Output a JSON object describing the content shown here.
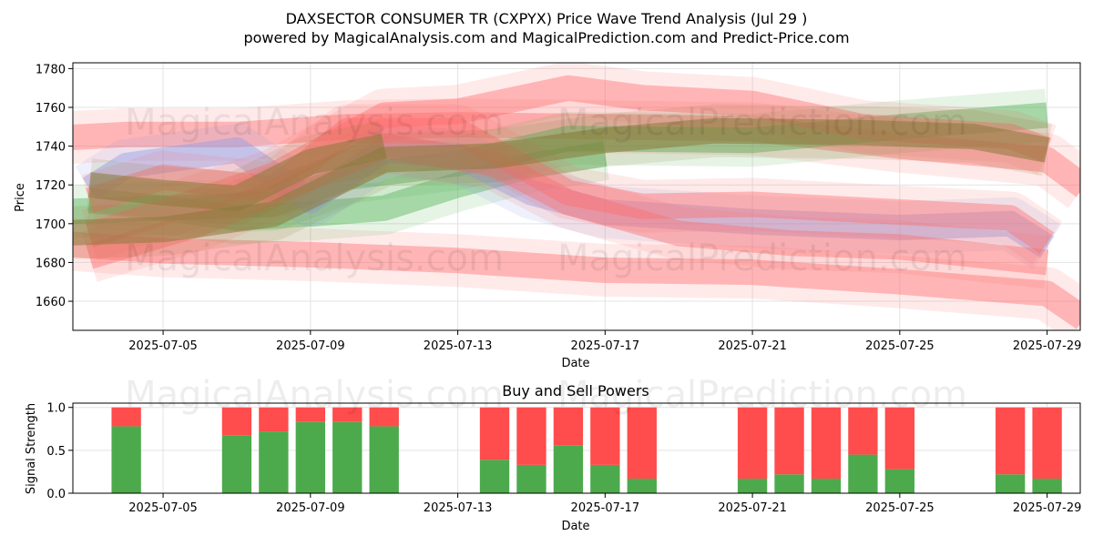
{
  "header": {
    "title": "DAXSECTOR CONSUMER TR (CXPYX) Price Wave Trend Analysis (Jul 29 )",
    "subtitle": "powered by MagicalAnalysis.com and MagicalPrediction.com and Predict-Price.com"
  },
  "watermarks": [
    "MagicalAnalysis.com",
    "MagicalPrediction.com"
  ],
  "colors": {
    "red_band": "#ff6b6b",
    "green_band": "#4caf50",
    "blue_band": "#8a9ae8",
    "olive_band": "#8b7a3a",
    "buy": "#4caa4c",
    "sell": "#ff4c4c"
  },
  "chart_data": [
    {
      "type": "area",
      "xlabel": "Date",
      "ylabel": "Price",
      "ylim": [
        1645,
        1783
      ],
      "xlim": [
        "2025-07-02",
        "2025-07-30"
      ],
      "grid": true,
      "x_ticks": [
        "2025-07-05",
        "2025-07-09",
        "2025-07-13",
        "2025-07-17",
        "2025-07-21",
        "2025-07-25",
        "2025-07-29"
      ],
      "y_ticks": [
        1660,
        1680,
        1700,
        1720,
        1740,
        1760,
        1780
      ],
      "series": [
        {
          "color": "red",
          "x": [
            "2025-07-02",
            "2025-07-04",
            "2025-07-07",
            "2025-07-10",
            "2025-07-13",
            "2025-07-17",
            "2025-07-21",
            "2025-07-25",
            "2025-07-29",
            "2025-07-30"
          ],
          "values": [
            1744,
            1746,
            1746,
            1750,
            1751,
            1750,
            1749,
            1740,
            1733,
            1719
          ]
        },
        {
          "color": "red",
          "x": [
            "2025-07-02",
            "2025-07-05",
            "2025-07-09",
            "2025-07-13",
            "2025-07-17",
            "2025-07-21",
            "2025-07-25",
            "2025-07-29",
            "2025-07-30"
          ],
          "values": [
            1690,
            1686,
            1684,
            1681,
            1676,
            1675,
            1670,
            1664,
            1651
          ]
        },
        {
          "color": "green",
          "x": [
            "2025-07-02",
            "2025-07-05",
            "2025-07-08",
            "2025-07-10",
            "2025-07-13",
            "2025-07-16",
            "2025-07-21",
            "2025-07-25",
            "2025-07-29"
          ],
          "values": [
            1706,
            1708,
            1710,
            1724,
            1731,
            1744,
            1743,
            1750,
            1756
          ]
        },
        {
          "color": "green",
          "x": [
            "2025-07-03",
            "2025-07-05",
            "2025-07-07",
            "2025-07-09",
            "2025-07-11",
            "2025-07-13",
            "2025-07-15",
            "2025-07-17"
          ],
          "values": [
            1712,
            1708,
            1703,
            1705,
            1708,
            1720,
            1730,
            1736
          ]
        },
        {
          "color": "blue",
          "x": [
            "2025-07-03",
            "2025-07-04",
            "2025-07-07",
            "2025-07-09",
            "2025-07-11",
            "2025-07-13",
            "2025-07-15",
            "2025-07-17",
            "2025-07-21",
            "2025-07-25",
            "2025-07-28",
            "2025-07-29"
          ],
          "values": [
            1718,
            1730,
            1738,
            1712,
            1738,
            1735,
            1716,
            1706,
            1701,
            1698,
            1700,
            1688
          ]
        },
        {
          "color": "red",
          "x": [
            "2025-07-03",
            "2025-07-05",
            "2025-07-08",
            "2025-07-10",
            "2025-07-13",
            "2025-07-16",
            "2025-07-18",
            "2025-07-21",
            "2025-07-25",
            "2025-07-28",
            "2025-07-29"
          ],
          "values": [
            1712,
            1724,
            1718,
            1748,
            1748,
            1716,
            1709,
            1710,
            1706,
            1703,
            1690
          ]
        },
        {
          "color": "red",
          "x": [
            "2025-07-03",
            "2025-07-05",
            "2025-07-08",
            "2025-07-11",
            "2025-07-13",
            "2025-07-16",
            "2025-07-18",
            "2025-07-21",
            "2025-07-24",
            "2025-07-28",
            "2025-07-29"
          ],
          "values": [
            1694,
            1706,
            1725,
            1756,
            1758,
            1770,
            1765,
            1762,
            1750,
            1745,
            1738
          ]
        },
        {
          "color": "red",
          "x": [
            "2025-07-03",
            "2025-07-06",
            "2025-07-09",
            "2025-07-11",
            "2025-07-14",
            "2025-07-16",
            "2025-07-19",
            "2025-07-22",
            "2025-07-25",
            "2025-07-29"
          ],
          "values": [
            1683,
            1700,
            1724,
            1740,
            1731,
            1711,
            1695,
            1690,
            1688,
            1680
          ]
        },
        {
          "color": "olive",
          "x": [
            "2025-07-02",
            "2025-07-05",
            "2025-07-08",
            "2025-07-11",
            "2025-07-14",
            "2025-07-17",
            "2025-07-20",
            "2025-07-24",
            "2025-07-27",
            "2025-07-29"
          ],
          "values": [
            1695,
            1697,
            1705,
            1733,
            1735,
            1743,
            1748,
            1747,
            1745,
            1738
          ]
        },
        {
          "color": "olive",
          "x": [
            "2025-07-03",
            "2025-07-05",
            "2025-07-07",
            "2025-07-09",
            "2025-07-11"
          ],
          "values": [
            1720,
            1716,
            1713,
            1732,
            1740
          ]
        }
      ]
    },
    {
      "type": "bar",
      "title": "Buy and Sell Powers",
      "xlabel": "Date",
      "ylabel": "Signal Strength",
      "ylim": [
        0,
        1.05
      ],
      "xlim": [
        "2025-07-02",
        "2025-07-30"
      ],
      "grid": true,
      "x_ticks": [
        "2025-07-05",
        "2025-07-09",
        "2025-07-13",
        "2025-07-17",
        "2025-07-21",
        "2025-07-25",
        "2025-07-29"
      ],
      "y_ticks": [
        "0.0",
        "0.5",
        "1.0"
      ],
      "categories": [
        "2025-07-04",
        "2025-07-07",
        "2025-07-08",
        "2025-07-09",
        "2025-07-10",
        "2025-07-11",
        "2025-07-14",
        "2025-07-15",
        "2025-07-16",
        "2025-07-17",
        "2025-07-18",
        "2025-07-21",
        "2025-07-22",
        "2025-07-23",
        "2025-07-24",
        "2025-07-25",
        "2025-07-28",
        "2025-07-29"
      ],
      "series": [
        {
          "name": "Buy",
          "values": [
            0.78,
            0.67,
            0.72,
            0.83,
            0.83,
            0.78,
            0.39,
            0.33,
            0.56,
            0.33,
            0.17,
            0.17,
            0.22,
            0.17,
            0.45,
            0.28,
            0.22,
            0.17
          ]
        },
        {
          "name": "Sell",
          "values": [
            0.22,
            0.33,
            0.28,
            0.17,
            0.17,
            0.22,
            0.61,
            0.67,
            0.44,
            0.67,
            0.83,
            0.83,
            0.78,
            0.83,
            0.55,
            0.72,
            0.78,
            0.83
          ]
        }
      ]
    }
  ]
}
